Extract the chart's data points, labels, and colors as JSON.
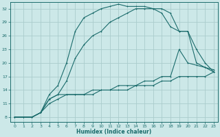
{
  "xlabel": "Humidex (Indice chaleur)",
  "ylabel": "",
  "background_color": "#cce8e8",
  "grid_color": "#aacccc",
  "line_color": "#1a6b6b",
  "xlim": [
    -0.5,
    23.5
  ],
  "ylim": [
    7,
    33.5
  ],
  "yticks": [
    8,
    11,
    14,
    17,
    20,
    23,
    26,
    29,
    32
  ],
  "xticks": [
    0,
    1,
    2,
    3,
    4,
    5,
    6,
    7,
    8,
    9,
    10,
    11,
    12,
    13,
    14,
    15,
    16,
    17,
    18,
    19,
    20,
    21,
    22,
    23
  ],
  "series": [
    {
      "x": [
        0,
        1,
        2,
        3,
        4,
        5,
        6,
        7,
        8,
        9,
        10,
        11,
        12,
        13,
        14,
        15,
        16,
        17,
        18,
        19,
        20,
        21,
        22,
        23
      ],
      "y": [
        8,
        8,
        8,
        9,
        13,
        15,
        20,
        27,
        30,
        31,
        32,
        32.5,
        33,
        32.5,
        32.5,
        32.5,
        32,
        31,
        28,
        27,
        27,
        20,
        19,
        18
      ]
    },
    {
      "x": [
        0,
        1,
        2,
        3,
        4,
        5,
        6,
        7,
        8,
        9,
        10,
        11,
        12,
        13,
        14,
        15,
        16,
        17,
        18,
        19,
        20,
        21,
        22,
        23
      ],
      "y": [
        8,
        8,
        8,
        9,
        12,
        13,
        16,
        21,
        24,
        26,
        27,
        29,
        30,
        31,
        32,
        32,
        32,
        32,
        31,
        27,
        27,
        23,
        20,
        18
      ]
    },
    {
      "x": [
        0,
        1,
        2,
        3,
        4,
        5,
        6,
        7,
        8,
        9,
        10,
        11,
        12,
        13,
        14,
        15,
        16,
        17,
        18,
        19,
        20,
        21,
        22,
        23
      ],
      "y": [
        8,
        8,
        8,
        9,
        12,
        13,
        13,
        13,
        13,
        14,
        14,
        14,
        15,
        15,
        15,
        16,
        16,
        17,
        17,
        23,
        20,
        19.5,
        19,
        18.5
      ]
    },
    {
      "x": [
        0,
        1,
        2,
        3,
        4,
        5,
        6,
        7,
        8,
        9,
        10,
        11,
        12,
        13,
        14,
        15,
        16,
        17,
        18,
        19,
        20,
        21,
        22,
        23
      ],
      "y": [
        8,
        8,
        8,
        9,
        11,
        12,
        13,
        13,
        13,
        13,
        14,
        14,
        14,
        14,
        15,
        15,
        15,
        16,
        16,
        17,
        17,
        17,
        17,
        18
      ]
    }
  ]
}
